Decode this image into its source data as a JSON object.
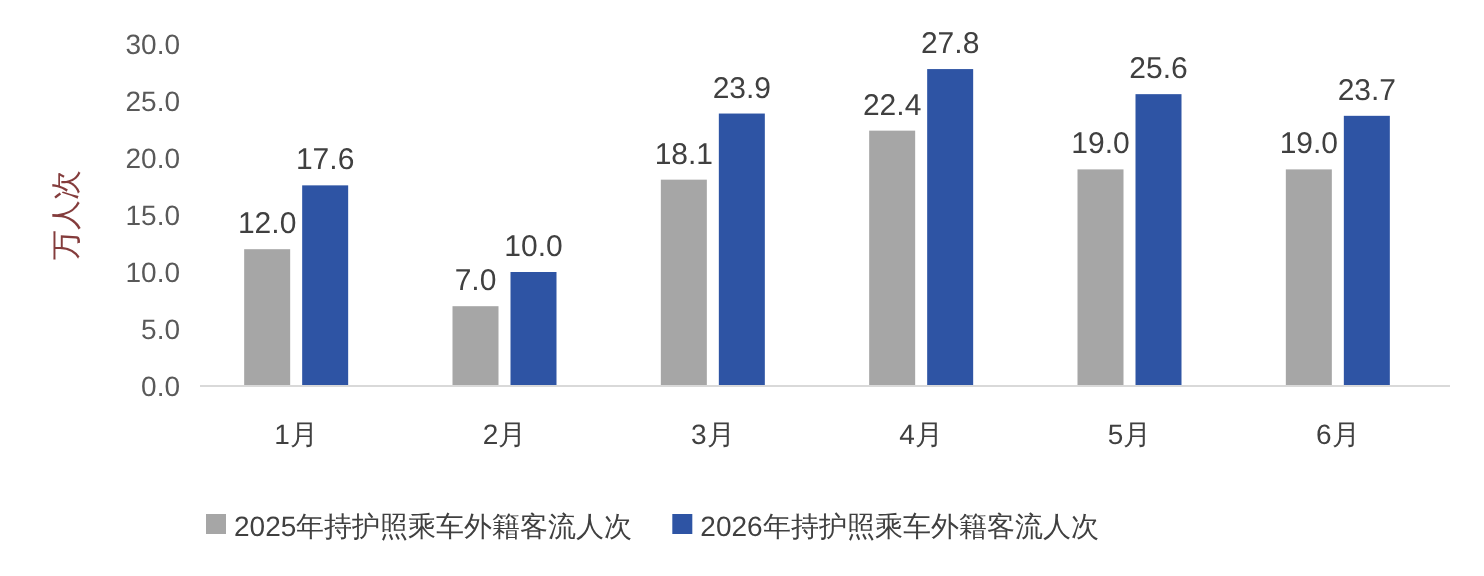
{
  "chart_data": {
    "type": "bar",
    "ylabel": "万人次",
    "categories": [
      "1月",
      "2月",
      "3月",
      "4月",
      "5月",
      "6月"
    ],
    "series": [
      {
        "name": "2025年持护照乘车外籍客流人次",
        "color": "#a6a6a6",
        "values": [
          12.0,
          7.0,
          18.1,
          22.4,
          19.0,
          19.0
        ],
        "value_labels": [
          "12.0",
          "7.0",
          "18.1",
          "22.4",
          "19.0",
          "19.0"
        ]
      },
      {
        "name": "2026年持护照乘车外籍客流人次",
        "color": "#2e54a4",
        "values": [
          17.6,
          10.0,
          23.9,
          27.8,
          25.6,
          23.7
        ],
        "value_labels": [
          "17.6",
          "10.0",
          "23.9",
          "27.8",
          "25.6",
          "23.7"
        ]
      }
    ],
    "ylim": [
      0,
      30
    ],
    "yticks": [
      {
        "value": 0,
        "label": "0.0"
      },
      {
        "value": 5,
        "label": "5.0"
      },
      {
        "value": 10,
        "label": "10.0"
      },
      {
        "value": 15,
        "label": "15.0"
      },
      {
        "value": 20,
        "label": "20.0"
      },
      {
        "value": 25,
        "label": "25.0"
      },
      {
        "value": 30,
        "label": "30.0"
      }
    ],
    "grid": false,
    "legend": "bottom"
  }
}
